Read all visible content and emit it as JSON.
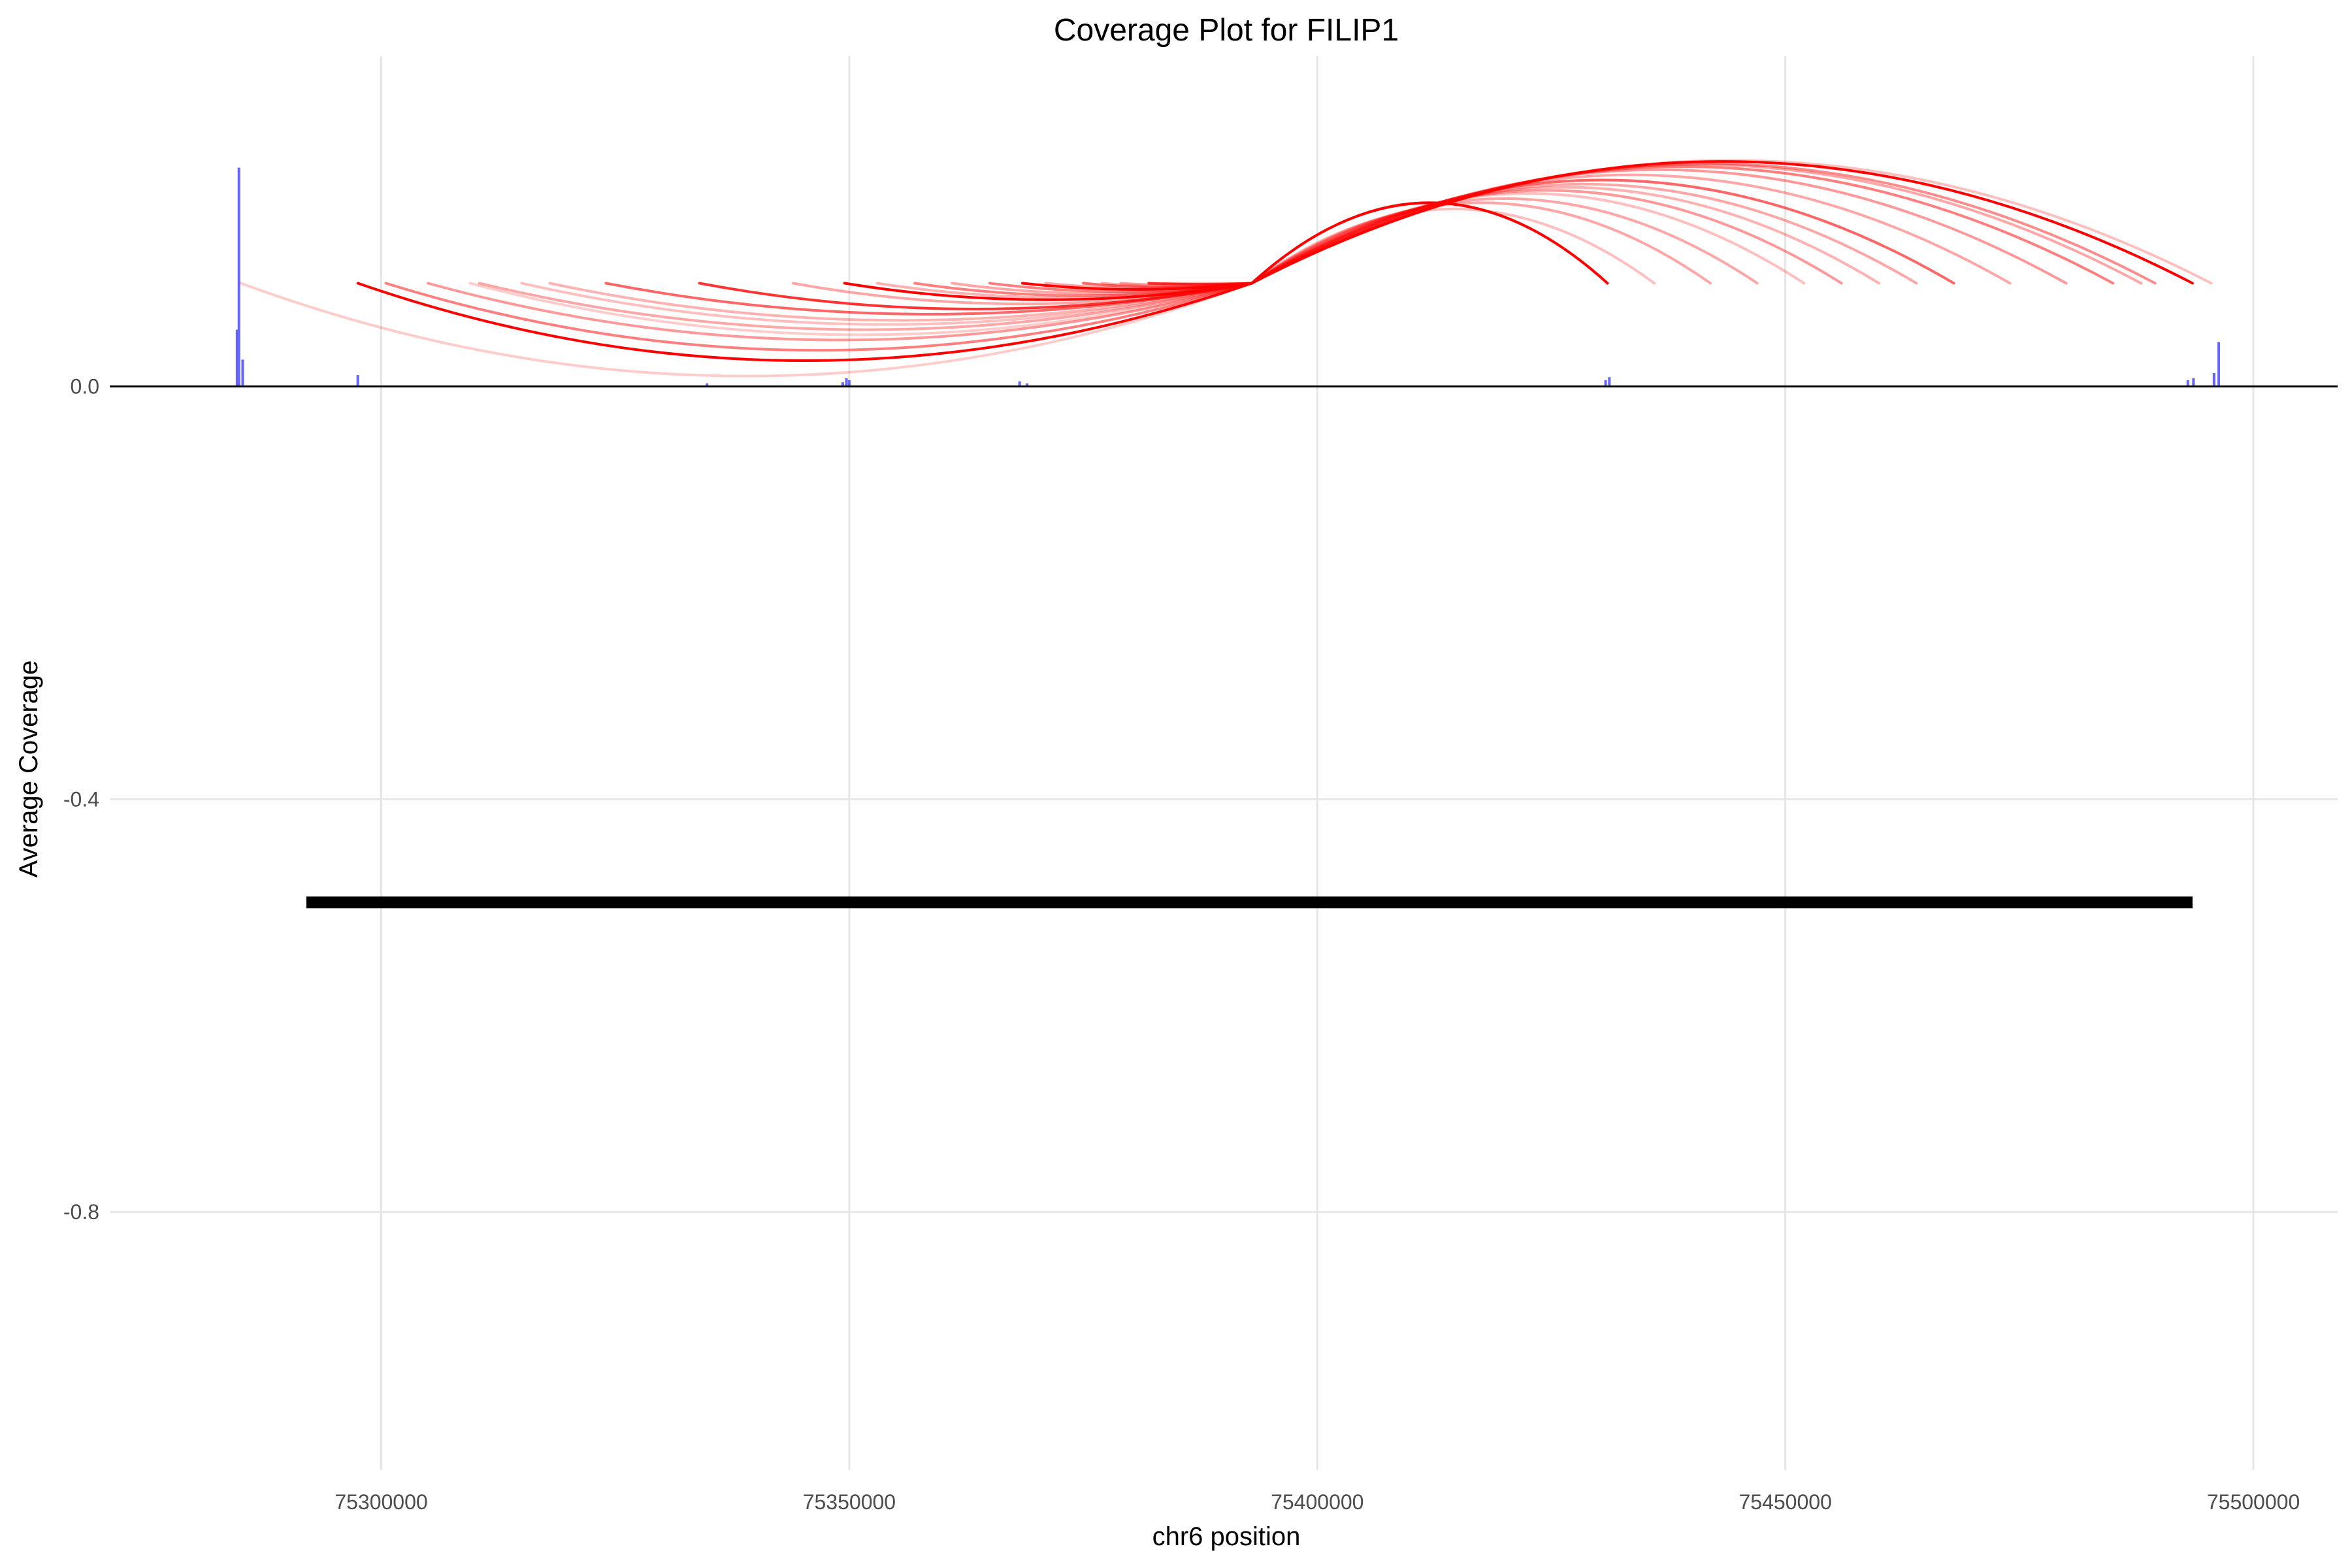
{
  "chart_data": {
    "type": "line",
    "title": "Coverage Plot for FILIP1",
    "xlabel": "chr6 position",
    "ylabel": "Average Coverage",
    "xlim": [
      75271000,
      75509000
    ],
    "ylim": [
      -1.05,
      0.32
    ],
    "x_ticks": [
      75300000,
      75350000,
      75400000,
      75450000,
      75500000
    ],
    "x_tick_labels": [
      "75300000",
      "75350000",
      "75400000",
      "75450000",
      "75500000"
    ],
    "y_ticks": [
      0.0,
      -0.4,
      -0.8
    ],
    "y_tick_labels": [
      "0.0",
      "-0.4",
      "-0.8"
    ],
    "grid": true,
    "legend": "none",
    "colors": {
      "coverage": "#6666ff",
      "junction": "#ff0000",
      "gene": "#000000",
      "grid": "#e6e6e6"
    },
    "coverage_bars": [
      {
        "x": 75284600,
        "y": 0.055
      },
      {
        "x": 75284800,
        "y": 0.212
      },
      {
        "x": 75285200,
        "y": 0.026
      },
      {
        "x": 75297500,
        "y": 0.011
      },
      {
        "x": 75334800,
        "y": 0.003
      },
      {
        "x": 75349300,
        "y": 0.004
      },
      {
        "x": 75349700,
        "y": 0.008
      },
      {
        "x": 75350000,
        "y": 0.006
      },
      {
        "x": 75368200,
        "y": 0.005
      },
      {
        "x": 75369000,
        "y": 0.003
      },
      {
        "x": 75430800,
        "y": 0.006
      },
      {
        "x": 75431200,
        "y": 0.009
      },
      {
        "x": 75493000,
        "y": 0.006
      },
      {
        "x": 75493600,
        "y": 0.008
      },
      {
        "x": 75495800,
        "y": 0.013
      },
      {
        "x": 75496300,
        "y": 0.043
      }
    ],
    "junctions": [
      {
        "start": 75285000,
        "end": 75393000,
        "apex": 0.01,
        "opacity": 0.2
      },
      {
        "start": 75297500,
        "end": 75393000,
        "apex": 0.025,
        "opacity": 1.0
      },
      {
        "start": 75300500,
        "end": 75393000,
        "apex": 0.035,
        "opacity": 0.5
      },
      {
        "start": 75305000,
        "end": 75393000,
        "apex": 0.045,
        "opacity": 0.4
      },
      {
        "start": 75309500,
        "end": 75393000,
        "apex": 0.05,
        "opacity": 0.2
      },
      {
        "start": 75310500,
        "end": 75393000,
        "apex": 0.055,
        "opacity": 0.35
      },
      {
        "start": 75315000,
        "end": 75393000,
        "apex": 0.06,
        "opacity": 0.25
      },
      {
        "start": 75318000,
        "end": 75393000,
        "apex": 0.064,
        "opacity": 0.3
      },
      {
        "start": 75324000,
        "end": 75393000,
        "apex": 0.07,
        "opacity": 0.6
      },
      {
        "start": 75334000,
        "end": 75393000,
        "apex": 0.075,
        "opacity": 0.8
      },
      {
        "start": 75344000,
        "end": 75393000,
        "apex": 0.08,
        "opacity": 0.35
      },
      {
        "start": 75349500,
        "end": 75393000,
        "apex": 0.084,
        "opacity": 1.0
      },
      {
        "start": 75353000,
        "end": 75393000,
        "apex": 0.086,
        "opacity": 0.3
      },
      {
        "start": 75357000,
        "end": 75393000,
        "apex": 0.088,
        "opacity": 0.5
      },
      {
        "start": 75361000,
        "end": 75393000,
        "apex": 0.09,
        "opacity": 0.35
      },
      {
        "start": 75365000,
        "end": 75393000,
        "apex": 0.092,
        "opacity": 0.5
      },
      {
        "start": 75368500,
        "end": 75393000,
        "apex": 0.094,
        "opacity": 1.0
      },
      {
        "start": 75371000,
        "end": 75393000,
        "apex": 0.095,
        "opacity": 0.35
      },
      {
        "start": 75375000,
        "end": 75393000,
        "apex": 0.096,
        "opacity": 0.6
      },
      {
        "start": 75377000,
        "end": 75393000,
        "apex": 0.097,
        "opacity": 0.3
      },
      {
        "start": 75379000,
        "end": 75393000,
        "apex": 0.098,
        "opacity": 0.35
      },
      {
        "start": 75382000,
        "end": 75393000,
        "apex": 0.099,
        "opacity": 0.8
      },
      {
        "start": 75383500,
        "end": 75393000,
        "apex": 0.1,
        "opacity": 0.3
      },
      {
        "start": 75393000,
        "end": 75431000,
        "apex": 0.178,
        "opacity": 1.0
      },
      {
        "start": 75393000,
        "end": 75436000,
        "apex": 0.172,
        "opacity": 0.25
      },
      {
        "start": 75393000,
        "end": 75442000,
        "apex": 0.178,
        "opacity": 0.35
      },
      {
        "start": 75393000,
        "end": 75447000,
        "apex": 0.182,
        "opacity": 0.35
      },
      {
        "start": 75393000,
        "end": 75452000,
        "apex": 0.187,
        "opacity": 0.25
      },
      {
        "start": 75393000,
        "end": 75456000,
        "apex": 0.19,
        "opacity": 0.4
      },
      {
        "start": 75393000,
        "end": 75460000,
        "apex": 0.193,
        "opacity": 0.3
      },
      {
        "start": 75393000,
        "end": 75464000,
        "apex": 0.196,
        "opacity": 0.35
      },
      {
        "start": 75393000,
        "end": 75468000,
        "apex": 0.2,
        "opacity": 0.6
      },
      {
        "start": 75393000,
        "end": 75474000,
        "apex": 0.205,
        "opacity": 0.35
      },
      {
        "start": 75393000,
        "end": 75480000,
        "apex": 0.21,
        "opacity": 0.4
      },
      {
        "start": 75393000,
        "end": 75485000,
        "apex": 0.213,
        "opacity": 0.5
      },
      {
        "start": 75393000,
        "end": 75488000,
        "apex": 0.215,
        "opacity": 0.35
      },
      {
        "start": 75393000,
        "end": 75489500,
        "apex": 0.216,
        "opacity": 0.45
      },
      {
        "start": 75393000,
        "end": 75493500,
        "apex": 0.218,
        "opacity": 1.0
      },
      {
        "start": 75393000,
        "end": 75495500,
        "apex": 0.219,
        "opacity": 0.25
      }
    ],
    "gene_segment": {
      "start": 75292000,
      "end": 75493500,
      "y": -0.5
    }
  }
}
